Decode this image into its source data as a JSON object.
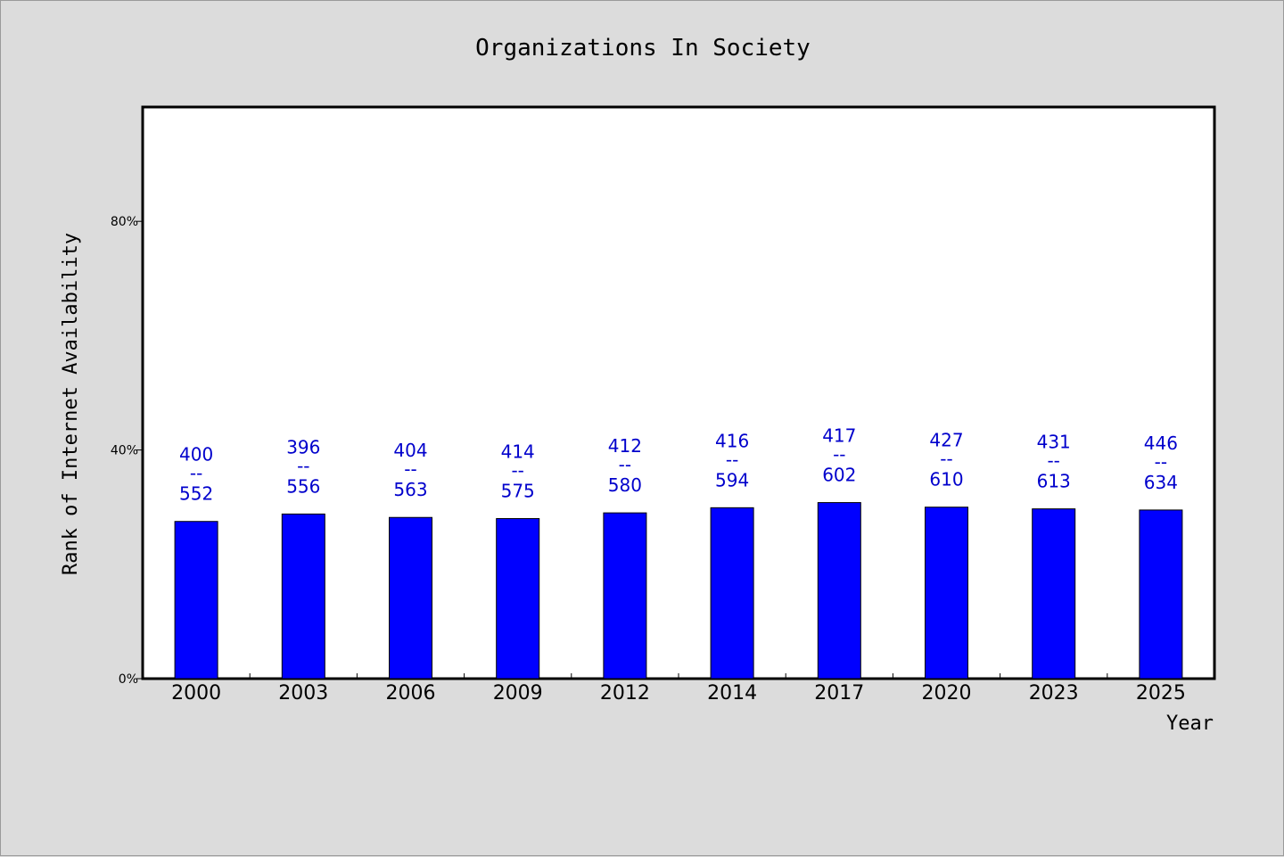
{
  "chart_data": {
    "type": "bar",
    "title": "Organizations In Society",
    "xlabel": "Year",
    "ylabel": "Rank of Internet Availability",
    "categories": [
      "2000",
      "2003",
      "2006",
      "2009",
      "2012",
      "2014",
      "2017",
      "2020",
      "2023",
      "2025"
    ],
    "values": [
      27.5,
      28.8,
      28.2,
      28.0,
      29.0,
      29.9,
      30.8,
      30.0,
      29.7,
      29.5
    ],
    "label_top": [
      "400",
      "396",
      "404",
      "414",
      "412",
      "416",
      "417",
      "427",
      "431",
      "446"
    ],
    "label_bottom": [
      "552",
      "556",
      "563",
      "575",
      "580",
      "594",
      "602",
      "610",
      "613",
      "634"
    ],
    "label_separator": "--",
    "ylim": [
      0,
      100
    ],
    "yticks": [
      0,
      40,
      80
    ],
    "ytick_labels": [
      "0%",
      "40%",
      "80%"
    ],
    "grid": false,
    "bar_color": "#0000ff",
    "label_color": "#0000cc",
    "plot_background": "#ffffff",
    "page_background": "#dcdcdc"
  }
}
